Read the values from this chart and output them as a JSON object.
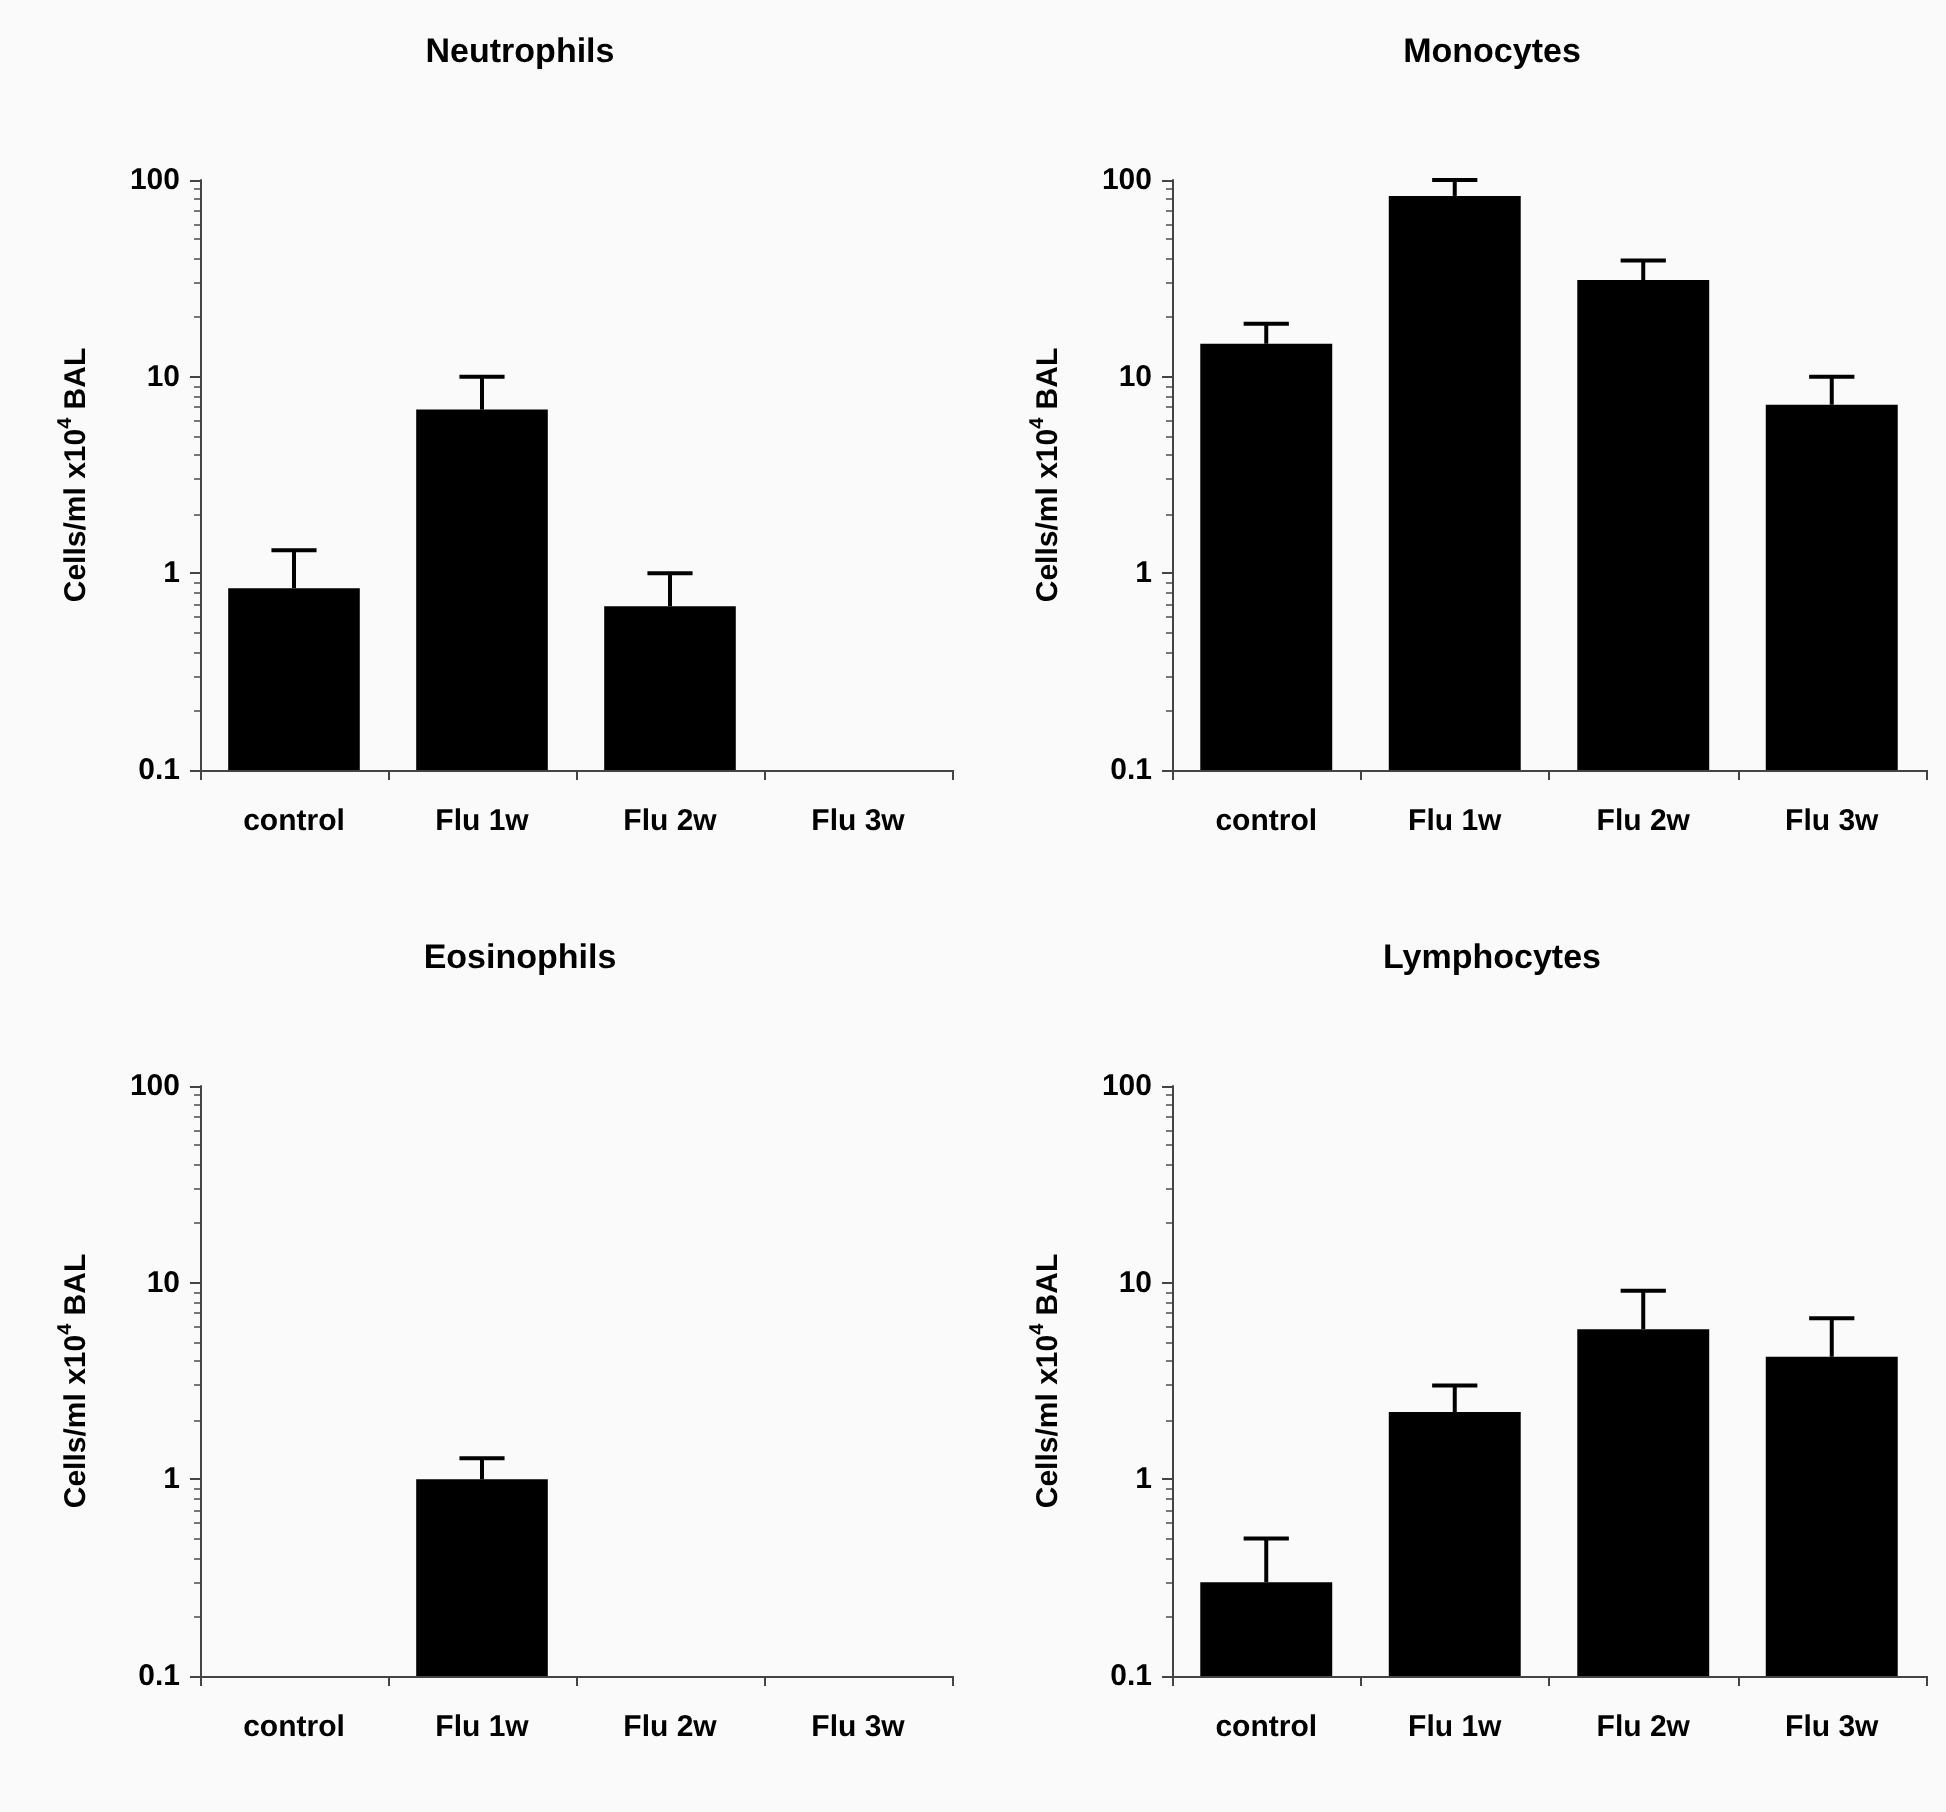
{
  "chart_data": [
    {
      "type": "bar",
      "title": "Neutrophils",
      "ylabel": "Cells/ml x10$^{4}$ BAL",
      "categories": [
        "control",
        "Flu 1w",
        "Flu 2w",
        "Flu 3w"
      ],
      "log": true,
      "grid": false,
      "ylim": [
        0.1,
        100
      ],
      "yticks": [
        0.1,
        1,
        10,
        100
      ],
      "series": [
        {
          "color": "#000000",
          "values": [
            0.84,
            6.8,
            0.68,
            null
          ],
          "errors": [
            [
              0.84,
              1.31
            ],
            [
              6.8,
              10
            ],
            [
              0.68,
              1.0
            ],
            null
          ]
        }
      ]
    },
    {
      "type": "bar",
      "title": "Monocytes",
      "ylabel": "Cells/ml x10$^{4}$ BAL",
      "categories": [
        "control",
        "Flu 1w",
        "Flu 2w",
        "Flu 3w"
      ],
      "log": true,
      "grid": false,
      "ylim": [
        0.1,
        100
      ],
      "yticks": [
        0.1,
        1,
        10,
        100
      ],
      "series": [
        {
          "color": "#000000",
          "values": [
            14.7,
            83,
            31,
            7.2
          ],
          "errors": [
            [
              14.7,
              18.6
            ],
            [
              83,
              100
            ],
            [
              31,
              39
            ],
            [
              7.2,
              10
            ]
          ]
        }
      ]
    },
    {
      "type": "bar",
      "title": "Eosinophils",
      "ylabel": "Cells/ml x10$^{4}$ BAL",
      "categories": [
        "control",
        "Flu 1w",
        "Flu 2w",
        "Flu 3w"
      ],
      "log": true,
      "grid": false,
      "ylim": [
        0.1,
        100
      ],
      "yticks": [
        0.1,
        1,
        10,
        100
      ],
      "series": [
        {
          "color": "#000000",
          "values": [
            null,
            1.0,
            null,
            null
          ],
          "errors": [
            null,
            [
              1.0,
              1.28
            ],
            null,
            null
          ]
        }
      ]
    },
    {
      "type": "bar",
      "title": "Lymphocytes",
      "ylabel": "Cells/ml x10$^{4}$ BAL",
      "categories": [
        "control",
        "Flu 1w",
        "Flu 2w",
        "Flu 3w"
      ],
      "log": true,
      "grid": false,
      "ylim": [
        0.1,
        100
      ],
      "yticks": [
        0.1,
        1,
        10,
        100
      ],
      "series": [
        {
          "color": "#000000",
          "values": [
            0.3,
            2.2,
            5.8,
            4.2
          ],
          "errors": [
            [
              0.3,
              0.5
            ],
            [
              2.2,
              3.0
            ],
            [
              5.8,
              9.1
            ],
            [
              4.2,
              6.6
            ]
          ]
        }
      ]
    }
  ]
}
